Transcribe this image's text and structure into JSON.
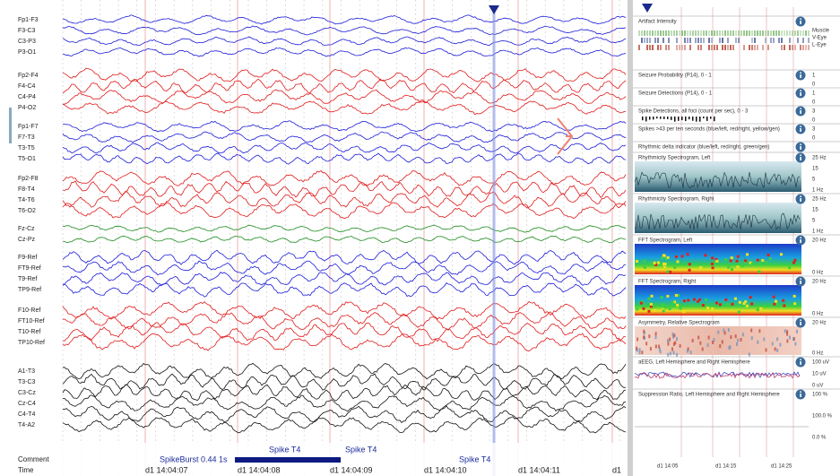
{
  "eeg": {
    "groups": [
      {
        "color": "#1a1ad8",
        "channels": [
          "Fp1-F3",
          "F3-C3",
          "C3-P3",
          "P3-O1"
        ]
      },
      {
        "color": "#e01a1a",
        "channels": [
          "Fp2-F4",
          "F4-C4",
          "C4-P4",
          "P4-O2"
        ]
      },
      {
        "color": "#1a1ad8",
        "channels": [
          "Fp1-F7",
          "F7-T3",
          "T3-T5",
          "T5-O1"
        ]
      },
      {
        "color": "#e01a1a",
        "channels": [
          "Fp2-F8",
          "F8-T4",
          "T4-T6",
          "T6-O2"
        ]
      },
      {
        "color": "#1a8a1a",
        "channels": [
          "Fz-Cz",
          "Cz-Pz"
        ]
      },
      {
        "color": "#1a1ad8",
        "channels": [
          "F9-Ref",
          "FT9-Ref",
          "T9-Ref",
          "TP9-Ref"
        ]
      },
      {
        "color": "#e01a1a",
        "channels": [
          "F10-Ref",
          "FT10-Ref",
          "T10-Ref",
          "TP10-Ref"
        ]
      },
      {
        "color": "#111111",
        "channels": [
          "A1-T3",
          "T3-C3",
          "C3-Cz",
          "Cz-C4",
          "C4-T4",
          "T4-A2"
        ]
      }
    ],
    "comment_label": "Comment",
    "time_label": "Time",
    "comments": [
      "SpikeBurst 0.44 1s",
      "Spike T4",
      "Spike T4",
      "Spike T4"
    ],
    "times": [
      "d1 14:04:07",
      "d1 14:04:08",
      "d1 14:04:09",
      "d1 14:04:10",
      "d1 14:04:11",
      "d1"
    ]
  },
  "trends": {
    "panels": [
      {
        "title": "Artifact Intensity",
        "labels": [
          "Muscle",
          "V-Eye",
          "L-Eye"
        ]
      },
      {
        "title": "Seizure Probability (P14), 0 - 1",
        "labels": [
          "1",
          "0"
        ]
      },
      {
        "title": "Seizure Detections (P14), 0 - 1",
        "labels": [
          "1",
          "0"
        ]
      },
      {
        "title": "Spike Detections, all foci (count per sec), 0 - 3",
        "labels": [
          "3",
          "0"
        ]
      },
      {
        "title": "Spikes >43 per ten seconds (blue/left, red/right, yellow/gen)",
        "labels": [
          "3",
          "0"
        ]
      },
      {
        "title": "Rhythmic delta indicator (blue/left, red/right, green/gen)",
        "labels": []
      },
      {
        "title": "Rhythmicity Spectrogram, Left",
        "labels": [
          "25 Hz",
          "15",
          "5",
          "1 Hz"
        ]
      },
      {
        "title": "Rhythmicity Spectrogram, Right",
        "labels": [
          "25 Hz",
          "15",
          "5",
          "1 Hz"
        ]
      },
      {
        "title": "FFT Spectrogram, Left",
        "labels": [
          "20 Hz",
          "0 Hz"
        ]
      },
      {
        "title": "FFT Spectrogram, Right",
        "labels": [
          "20 Hz",
          "0 Hz"
        ]
      },
      {
        "title": "Asymmetry, Relative Spectrogram",
        "labels": [
          "20 Hz",
          "0 Hz"
        ]
      },
      {
        "title": "aEEG, Left Hemisphere and Right Hemisphere",
        "labels": [
          "100 uV",
          "10 uV",
          "0 uV"
        ]
      },
      {
        "title": "Suppression Ratio, Left Hemisphere and Right Hemisphere",
        "labels": [
          "100 %",
          "100.0 %",
          "0.0 %"
        ]
      }
    ],
    "times": [
      "d1 14:05",
      "d1 14:15",
      "d1 14:25"
    ]
  }
}
